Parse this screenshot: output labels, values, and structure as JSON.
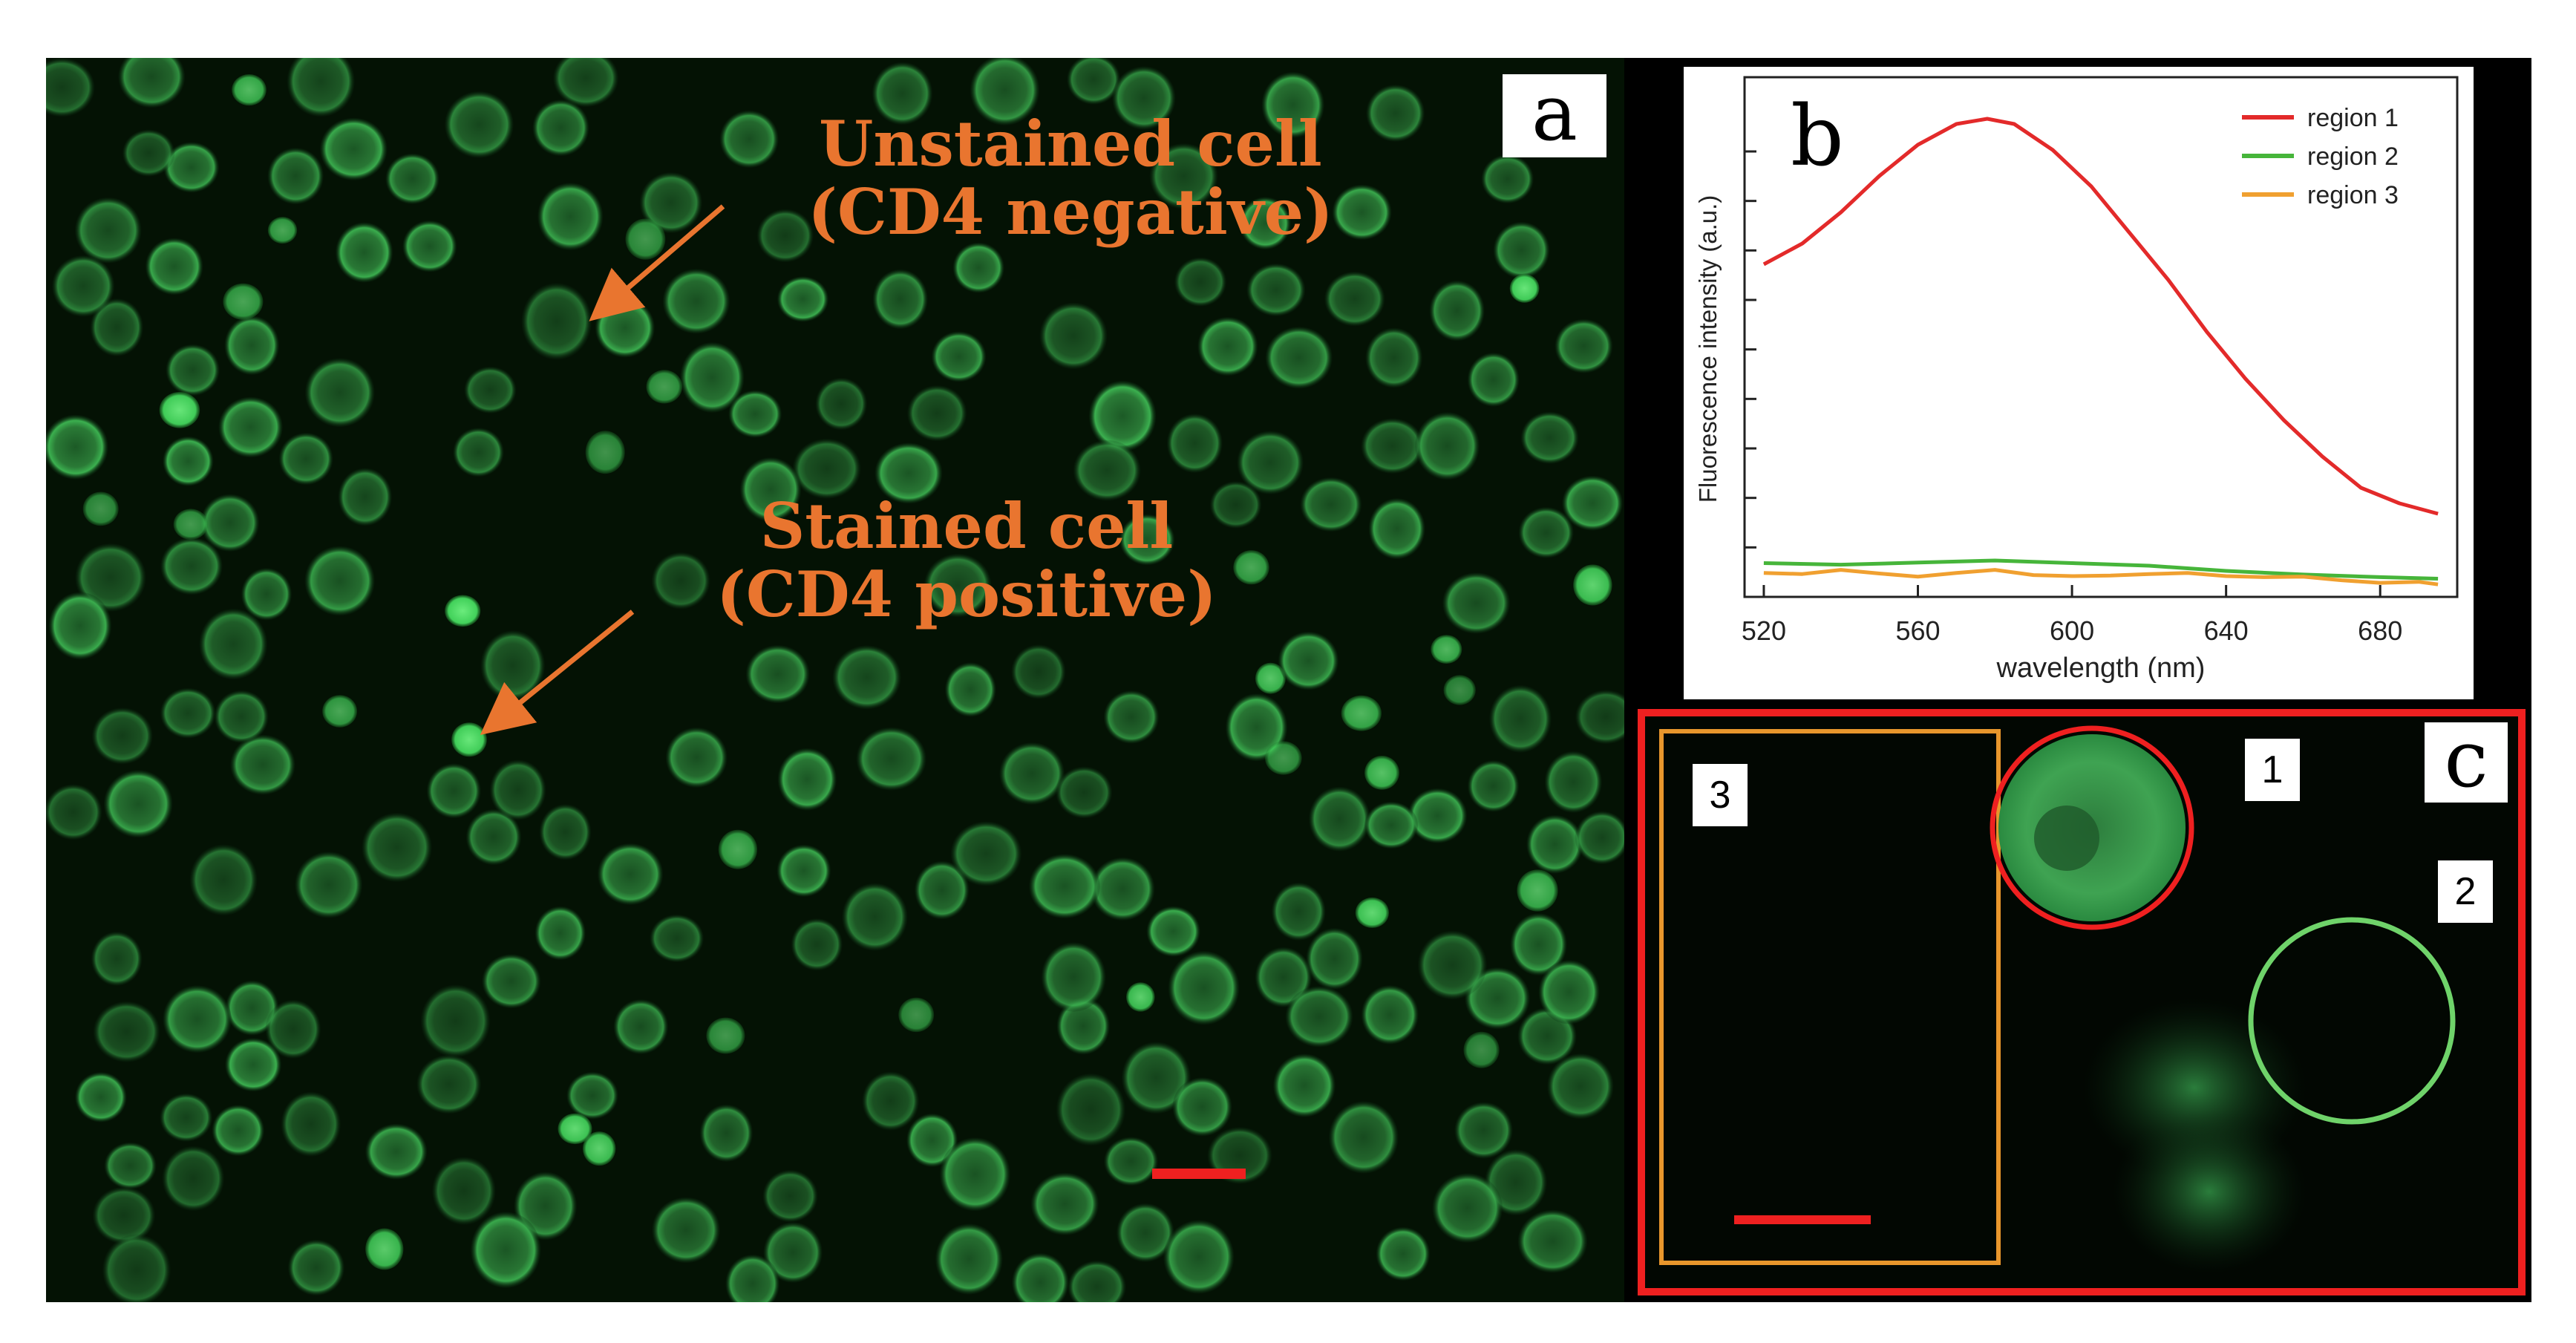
{
  "panel_a": {
    "label": "a",
    "annotation_unstained_line1": "Unstained cell",
    "annotation_unstained_line2": "(CD4 negative)",
    "annotation_stained_line1": "Stained cell",
    "annotation_stained_line2": "(CD4 positive)",
    "colors": {
      "background": "#041204",
      "cell": "#3fbf58",
      "annotation": "#e9752f",
      "scalebar": "#ef2020"
    }
  },
  "panel_b": {
    "label": "b",
    "chart_data": {
      "type": "line",
      "title": "",
      "xlabel": "wavelength (nm)",
      "ylabel": "Fluorescence intensity (a.u.)",
      "xlim": [
        515,
        700
      ],
      "ylim": [
        0,
        100
      ],
      "xticks": [
        "520",
        "560",
        "600",
        "640",
        "680"
      ],
      "legend_position": "top-right",
      "series": [
        {
          "name": "region 1",
          "color": "#e32a2a",
          "x": [
            520,
            530,
            540,
            550,
            560,
            570,
            578,
            585,
            595,
            605,
            615,
            625,
            635,
            645,
            655,
            665,
            675,
            685,
            695
          ],
          "y": [
            64,
            68,
            74,
            81,
            87,
            91,
            92,
            91,
            86,
            79,
            70,
            61,
            51,
            42,
            34,
            27,
            21,
            18,
            16
          ]
        },
        {
          "name": "region 2",
          "color": "#46b53a",
          "x": [
            520,
            540,
            560,
            580,
            600,
            620,
            640,
            660,
            680,
            695
          ],
          "y": [
            6.5,
            6.2,
            6.6,
            7.0,
            6.5,
            6.0,
            5.0,
            4.3,
            3.8,
            3.5
          ]
        },
        {
          "name": "region 3",
          "color": "#f0a030",
          "x": [
            520,
            530,
            540,
            550,
            560,
            570,
            580,
            590,
            600,
            610,
            620,
            630,
            640,
            650,
            660,
            670,
            680,
            690,
            695
          ],
          "y": [
            4.6,
            4.4,
            5.2,
            4.5,
            3.9,
            4.6,
            5.2,
            4.2,
            4.0,
            4.1,
            4.4,
            4.6,
            4.0,
            3.8,
            3.9,
            3.2,
            2.7,
            2.9,
            2.4
          ]
        }
      ]
    }
  },
  "panel_c": {
    "label": "c",
    "region_labels": [
      "1",
      "2",
      "3"
    ],
    "colors": {
      "region1": "#ef2020",
      "region2": "#6fd36a",
      "region3": "#e8962c",
      "frame": "#ef2020"
    }
  }
}
